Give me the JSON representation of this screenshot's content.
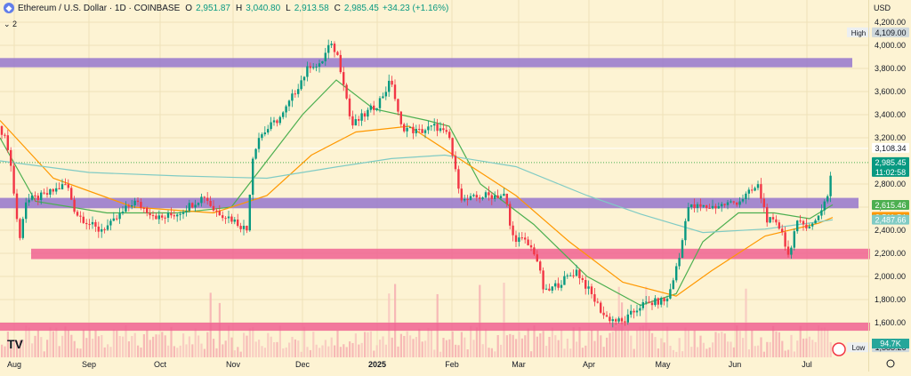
{
  "header": {
    "symbol": "Ethereum / U.S. Dollar · 1D · COINBASE",
    "open_label": "O",
    "open": "2,951.87",
    "high_label": "H",
    "high": "3,040.80",
    "low_label": "L",
    "low": "2,913.58",
    "close_label": "C",
    "close": "2,985.45",
    "change": "+34.23 (+1.16%)"
  },
  "indicator_toggle": "2",
  "currency": "USD",
  "watermark": "TV",
  "colors": {
    "background": "#fdf3d3",
    "up": "#089981",
    "down": "#f23645",
    "resistance_zone": "#9575cd",
    "support_zone": "#f06292",
    "ma_fast": "#4caf50",
    "ma_mid": "#ff9800",
    "ma_slow": "#80cbc4"
  },
  "chart_data": {
    "type": "candlestick",
    "x_ticks": [
      "Aug",
      "Sep",
      "Oct",
      "Nov",
      "Dec",
      "2025",
      "Feb",
      "Mar",
      "Apr",
      "May",
      "Jun",
      "Jul"
    ],
    "y_ticks": [
      "4,200.00",
      "4,000.00",
      "3,800.00",
      "3,600.00",
      "3,400.00",
      "3,200.00",
      "2,800.00",
      "2,600.00",
      "2,400.00",
      "2,200.00",
      "2,000.00",
      "1,800.00",
      "1,600.00"
    ],
    "y_tick_values": [
      4200,
      4000,
      3800,
      3600,
      3400,
      3200,
      2800,
      2600,
      2400,
      2200,
      2000,
      1800,
      1600
    ],
    "ylim": [
      1300,
      4300
    ],
    "price_path": [
      [
        0,
        3300
      ],
      [
        10,
        3100
      ],
      [
        22,
        2300
      ],
      [
        28,
        2650
      ],
      [
        50,
        2700
      ],
      [
        75,
        2800
      ],
      [
        85,
        2550
      ],
      [
        110,
        2400
      ],
      [
        125,
        2450
      ],
      [
        150,
        2650
      ],
      [
        160,
        2600
      ],
      [
        180,
        2500
      ],
      [
        200,
        2550
      ],
      [
        230,
        2700
      ],
      [
        240,
        2580
      ],
      [
        260,
        2500
      ],
      [
        278,
        2400
      ],
      [
        283,
        3000
      ],
      [
        290,
        3200
      ],
      [
        318,
        3400
      ],
      [
        335,
        3650
      ],
      [
        350,
        3850
      ],
      [
        358,
        3800
      ],
      [
        370,
        4000
      ],
      [
        378,
        3950
      ],
      [
        386,
        3700
      ],
      [
        395,
        3300
      ],
      [
        410,
        3400
      ],
      [
        425,
        3500
      ],
      [
        440,
        3700
      ],
      [
        450,
        3300
      ],
      [
        470,
        3250
      ],
      [
        490,
        3300
      ],
      [
        505,
        3200
      ],
      [
        512,
        2900
      ],
      [
        520,
        2650
      ],
      [
        545,
        2700
      ],
      [
        568,
        2700
      ],
      [
        575,
        2350
      ],
      [
        590,
        2300
      ],
      [
        602,
        2200
      ],
      [
        612,
        1850
      ],
      [
        630,
        1950
      ],
      [
        648,
        2050
      ],
      [
        660,
        1900
      ],
      [
        680,
        1650
      ],
      [
        700,
        1600
      ],
      [
        720,
        1750
      ],
      [
        750,
        1800
      ],
      [
        765,
        2200
      ],
      [
        772,
        2600
      ],
      [
        800,
        2600
      ],
      [
        830,
        2650
      ],
      [
        852,
        2780
      ],
      [
        862,
        2500
      ],
      [
        880,
        2400
      ],
      [
        885,
        2150
      ],
      [
        895,
        2450
      ],
      [
        915,
        2450
      ],
      [
        930,
        2700
      ],
      [
        936,
        2985
      ]
    ],
    "series": [
      {
        "name": "",
        "kind": "ma_fast",
        "points": [
          [
            0,
            3200
          ],
          [
            40,
            2650
          ],
          [
            120,
            2550
          ],
          [
            200,
            2550
          ],
          [
            260,
            2600
          ],
          [
            290,
            2900
          ],
          [
            340,
            3400
          ],
          [
            378,
            3700
          ],
          [
            420,
            3450
          ],
          [
            480,
            3350
          ],
          [
            505,
            3300
          ],
          [
            540,
            2800
          ],
          [
            600,
            2450
          ],
          [
            660,
            2000
          ],
          [
            720,
            1750
          ],
          [
            760,
            1850
          ],
          [
            790,
            2300
          ],
          [
            830,
            2550
          ],
          [
            870,
            2550
          ],
          [
            910,
            2500
          ],
          [
            936,
            2620
          ]
        ]
      },
      {
        "name": "",
        "kind": "ma_mid",
        "points": [
          [
            0,
            3350
          ],
          [
            60,
            2850
          ],
          [
            150,
            2600
          ],
          [
            240,
            2550
          ],
          [
            300,
            2700
          ],
          [
            350,
            3050
          ],
          [
            400,
            3250
          ],
          [
            460,
            3300
          ],
          [
            520,
            3000
          ],
          [
            580,
            2700
          ],
          [
            640,
            2300
          ],
          [
            700,
            1950
          ],
          [
            760,
            1830
          ],
          [
            800,
            2050
          ],
          [
            860,
            2350
          ],
          [
            920,
            2460
          ],
          [
            936,
            2510
          ]
        ]
      },
      {
        "name": "",
        "kind": "ma_slow",
        "points": [
          [
            0,
            3000
          ],
          [
            100,
            2900
          ],
          [
            200,
            2870
          ],
          [
            300,
            2850
          ],
          [
            380,
            2950
          ],
          [
            440,
            3020
          ],
          [
            500,
            3050
          ],
          [
            580,
            2950
          ],
          [
            660,
            2700
          ],
          [
            720,
            2540
          ],
          [
            790,
            2380
          ],
          [
            860,
            2410
          ],
          [
            936,
            2490
          ]
        ]
      }
    ],
    "zones": [
      {
        "kind": "resistance",
        "low": 3810,
        "high": 3890,
        "x_from": 0,
        "x_to": 958
      },
      {
        "kind": "resistance",
        "low": 2590,
        "high": 2680,
        "x_from": 0,
        "x_to": 965
      },
      {
        "kind": "support",
        "low": 2150,
        "high": 2240,
        "x_from": 35,
        "x_to": 978
      },
      {
        "kind": "support",
        "low": 1530,
        "high": 1600,
        "x_from": 0,
        "x_to": 978
      }
    ],
    "horizontal_lines": [
      3108.34,
      2985.45
    ],
    "price_labels": [
      {
        "role": "high",
        "title": "High",
        "value": "4,109.00",
        "price": 4109
      },
      {
        "role": "prev",
        "title": "",
        "value": "3,108.34",
        "price": 3108.34
      },
      {
        "role": "last",
        "title": "",
        "value": "2,985.45",
        "sub": "11:02:58",
        "price": 2985.45
      },
      {
        "role": "ma_fast",
        "title": "",
        "value": "2,615.46",
        "price": 2615.46
      },
      {
        "role": "ma_mid",
        "title": "",
        "value": "2,511.54",
        "price": 2511.54
      },
      {
        "role": "ma_slow",
        "title": "",
        "value": "2,487.66",
        "price": 2487.66
      },
      {
        "role": "low",
        "title": "Low",
        "value": "1,383.26",
        "price": 1383.26
      }
    ],
    "volume_label": "94.7K"
  }
}
